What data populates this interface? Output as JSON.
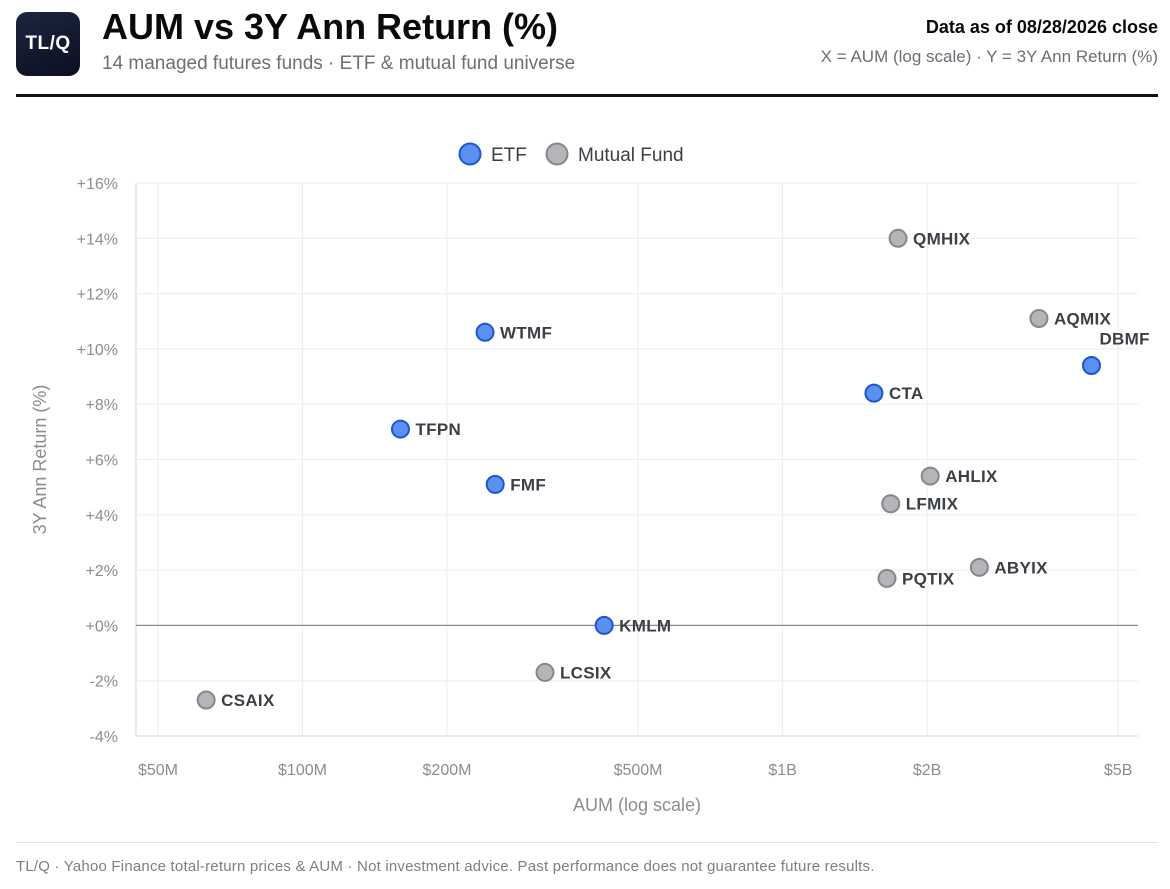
{
  "header": {
    "logo_text": "TL/Q",
    "title": "AUM vs 3Y Ann Return (%)",
    "subtitle": "14 managed futures funds · ETF & mutual fund universe",
    "as_of": "Data as of 08/28/2026 close",
    "axis_note": "X = AUM (log scale) · Y = 3Y Ann Return (%)"
  },
  "footer": {
    "text": "TL/Q · Yahoo Finance total-return prices & AUM · Not investment advice. Past performance does not guarantee future results."
  },
  "colors": {
    "etf_fill": "#5b8ff0",
    "etf_stroke": "#1a56d6",
    "mf_fill": "#b4b5b9",
    "mf_stroke": "#86878c",
    "grid": "#eeeeef",
    "zero_line": "#8a8d93",
    "axis_text": "#8a8d93",
    "label_text": "#3b3f46"
  },
  "chart_data": {
    "type": "scatter",
    "xlabel": "AUM (log scale)",
    "ylabel": "3Y Ann Return (%)",
    "x_scale": "log",
    "xlim_usd_millions": [
      45,
      5500
    ],
    "ylim": [
      -4,
      16
    ],
    "x_ticks": [
      {
        "value": 50,
        "label": "$50M"
      },
      {
        "value": 100,
        "label": "$100M"
      },
      {
        "value": 200,
        "label": "$200M"
      },
      {
        "value": 500,
        "label": "$500M"
      },
      {
        "value": 1000,
        "label": "$1B"
      },
      {
        "value": 2000,
        "label": "$2B"
      },
      {
        "value": 5000,
        "label": "$5B"
      }
    ],
    "y_ticks": [
      {
        "value": 16,
        "label": "+16%"
      },
      {
        "value": 14,
        "label": "+14%"
      },
      {
        "value": 12,
        "label": "+12%"
      },
      {
        "value": 10,
        "label": "+10%"
      },
      {
        "value": 8,
        "label": "+8%"
      },
      {
        "value": 6,
        "label": "+6%"
      },
      {
        "value": 4,
        "label": "+4%"
      },
      {
        "value": 2,
        "label": "+2%"
      },
      {
        "value": 0,
        "label": "+0%"
      },
      {
        "value": -2,
        "label": "-2%"
      },
      {
        "value": -4,
        "label": "-4%"
      }
    ],
    "grid": true,
    "legend_position": "top-center",
    "series": [
      {
        "name": "ETF",
        "points": [
          {
            "label": "DBMF",
            "aum_usd_millions": 4400,
            "return_pct": 9.4
          },
          {
            "label": "CTA",
            "aum_usd_millions": 1550,
            "return_pct": 8.4
          },
          {
            "label": "WTMF",
            "aum_usd_millions": 240,
            "return_pct": 10.6
          },
          {
            "label": "TFPN",
            "aum_usd_millions": 160,
            "return_pct": 7.1
          },
          {
            "label": "FMF",
            "aum_usd_millions": 252,
            "return_pct": 5.1
          },
          {
            "label": "KMLM",
            "aum_usd_millions": 425,
            "return_pct": 0.0
          }
        ]
      },
      {
        "name": "Mutual Fund",
        "points": [
          {
            "label": "QMHIX",
            "aum_usd_millions": 1740,
            "return_pct": 14.0
          },
          {
            "label": "AQMIX",
            "aum_usd_millions": 3420,
            "return_pct": 11.1
          },
          {
            "label": "AHLIX",
            "aum_usd_millions": 2030,
            "return_pct": 5.4
          },
          {
            "label": "LFMIX",
            "aum_usd_millions": 1680,
            "return_pct": 4.4
          },
          {
            "label": "ABYIX",
            "aum_usd_millions": 2570,
            "return_pct": 2.1
          },
          {
            "label": "PQTIX",
            "aum_usd_millions": 1650,
            "return_pct": 1.7
          },
          {
            "label": "LCSIX",
            "aum_usd_millions": 320,
            "return_pct": -1.7
          },
          {
            "label": "CSAIX",
            "aum_usd_millions": 63,
            "return_pct": -2.7
          }
        ]
      }
    ]
  }
}
